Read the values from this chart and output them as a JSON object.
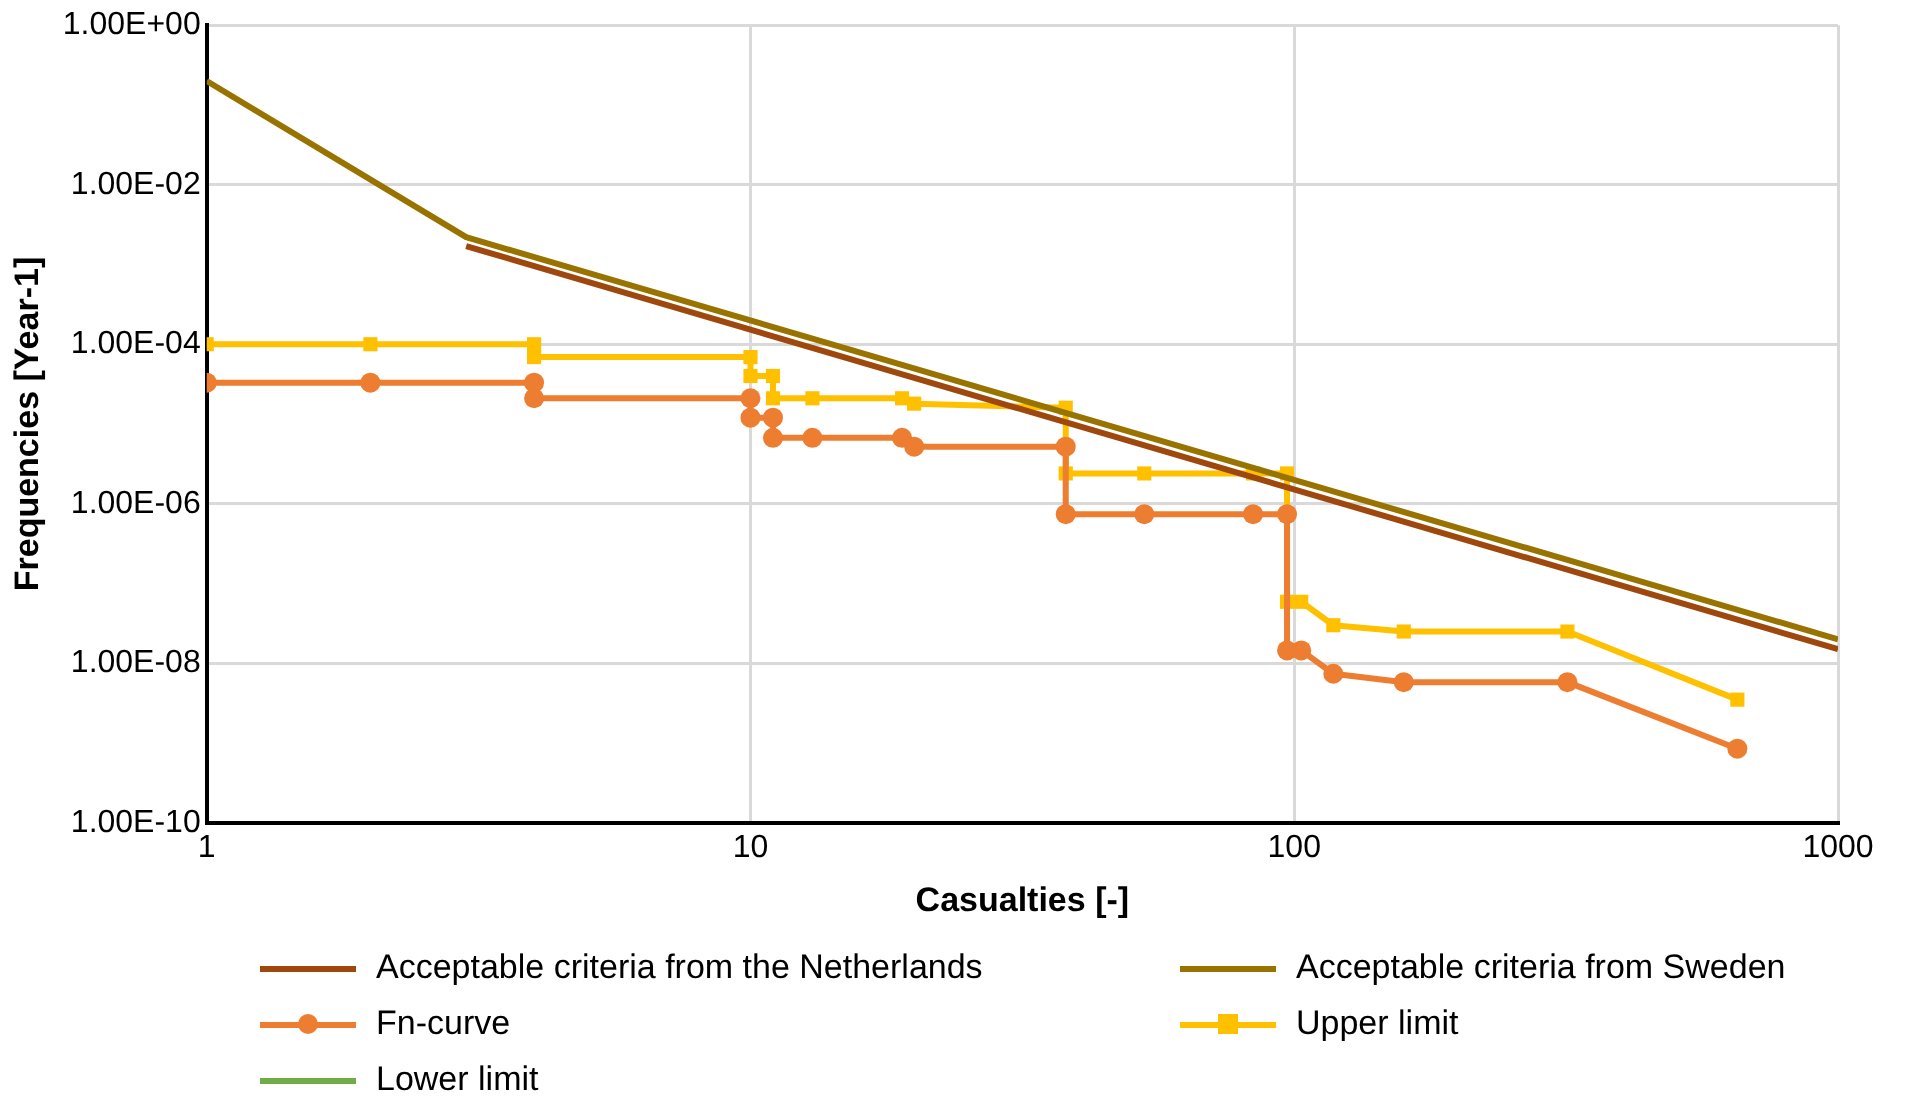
{
  "chart_data": {
    "type": "line",
    "xlabel": "Casualties [-]",
    "ylabel": "Frequencies [Year-1]",
    "log": "xy",
    "grid": true,
    "legend": "bottom",
    "xlim": [
      1,
      1000
    ],
    "xticks": [
      1,
      10,
      100,
      1000
    ],
    "ylim": [
      1e-10,
      1
    ],
    "yticks": [
      {
        "value": 1,
        "label": "1.00E+00"
      },
      {
        "value": 0.01,
        "label": "1.00E-02"
      },
      {
        "value": 0.0001,
        "label": "1.00E-04"
      },
      {
        "value": 1e-06,
        "label": "1.00E-06"
      },
      {
        "value": 1e-08,
        "label": "1.00E-08"
      },
      {
        "value": 1e-10,
        "label": "1.00E-10"
      }
    ],
    "series": [
      {
        "name": "Acceptable criteria from the Netherlands",
        "color": "#9e480e",
        "marker": "none",
        "x": [
          3,
          1000
        ],
        "values": [
          0.0017,
          1.5e-08
        ]
      },
      {
        "name": "Acceptable criteria from Sweden",
        "color": "#997300",
        "marker": "none",
        "x": [
          1,
          3,
          1000
        ],
        "values": [
          0.2,
          0.0022,
          2e-08
        ]
      },
      {
        "name": "Fn-curve",
        "color": "#ed7d31",
        "marker": "circle",
        "x": [
          1,
          2,
          4,
          4,
          10,
          10,
          11,
          11,
          13,
          19,
          20,
          38,
          38,
          53,
          84,
          97,
          97,
          103,
          118,
          159,
          318,
          653
        ],
        "values": [
          3.3e-05,
          3.3e-05,
          3.3e-05,
          2.1e-05,
          2.1e-05,
          1.2e-05,
          1.2e-05,
          6.7e-06,
          6.7e-06,
          6.7e-06,
          5.2e-06,
          5.2e-06,
          7.4e-07,
          7.4e-07,
          7.4e-07,
          7.4e-07,
          1.45e-08,
          1.45e-08,
          7.4e-09,
          5.8e-09,
          5.8e-09,
          8.5e-10
        ]
      },
      {
        "name": "Upper limit",
        "color": "#ffc000",
        "marker": "square",
        "x": [
          1,
          2,
          4,
          4,
          10,
          10,
          11,
          11,
          13,
          19,
          20,
          38,
          38,
          53,
          84,
          97,
          97,
          103,
          118,
          159,
          318,
          653
        ],
        "values": [
          0.0001,
          0.0001,
          0.0001,
          6.9e-05,
          6.9e-05,
          4e-05,
          4e-05,
          2.1e-05,
          2.1e-05,
          2.1e-05,
          1.8e-05,
          1.6e-05,
          2.4e-06,
          2.4e-06,
          2.4e-06,
          2.4e-06,
          5.9e-08,
          5.9e-08,
          3e-08,
          2.5e-08,
          2.5e-08,
          3.5e-09
        ]
      },
      {
        "name": "Lower limit",
        "color": "#70ad47",
        "marker": "none"
      }
    ]
  }
}
